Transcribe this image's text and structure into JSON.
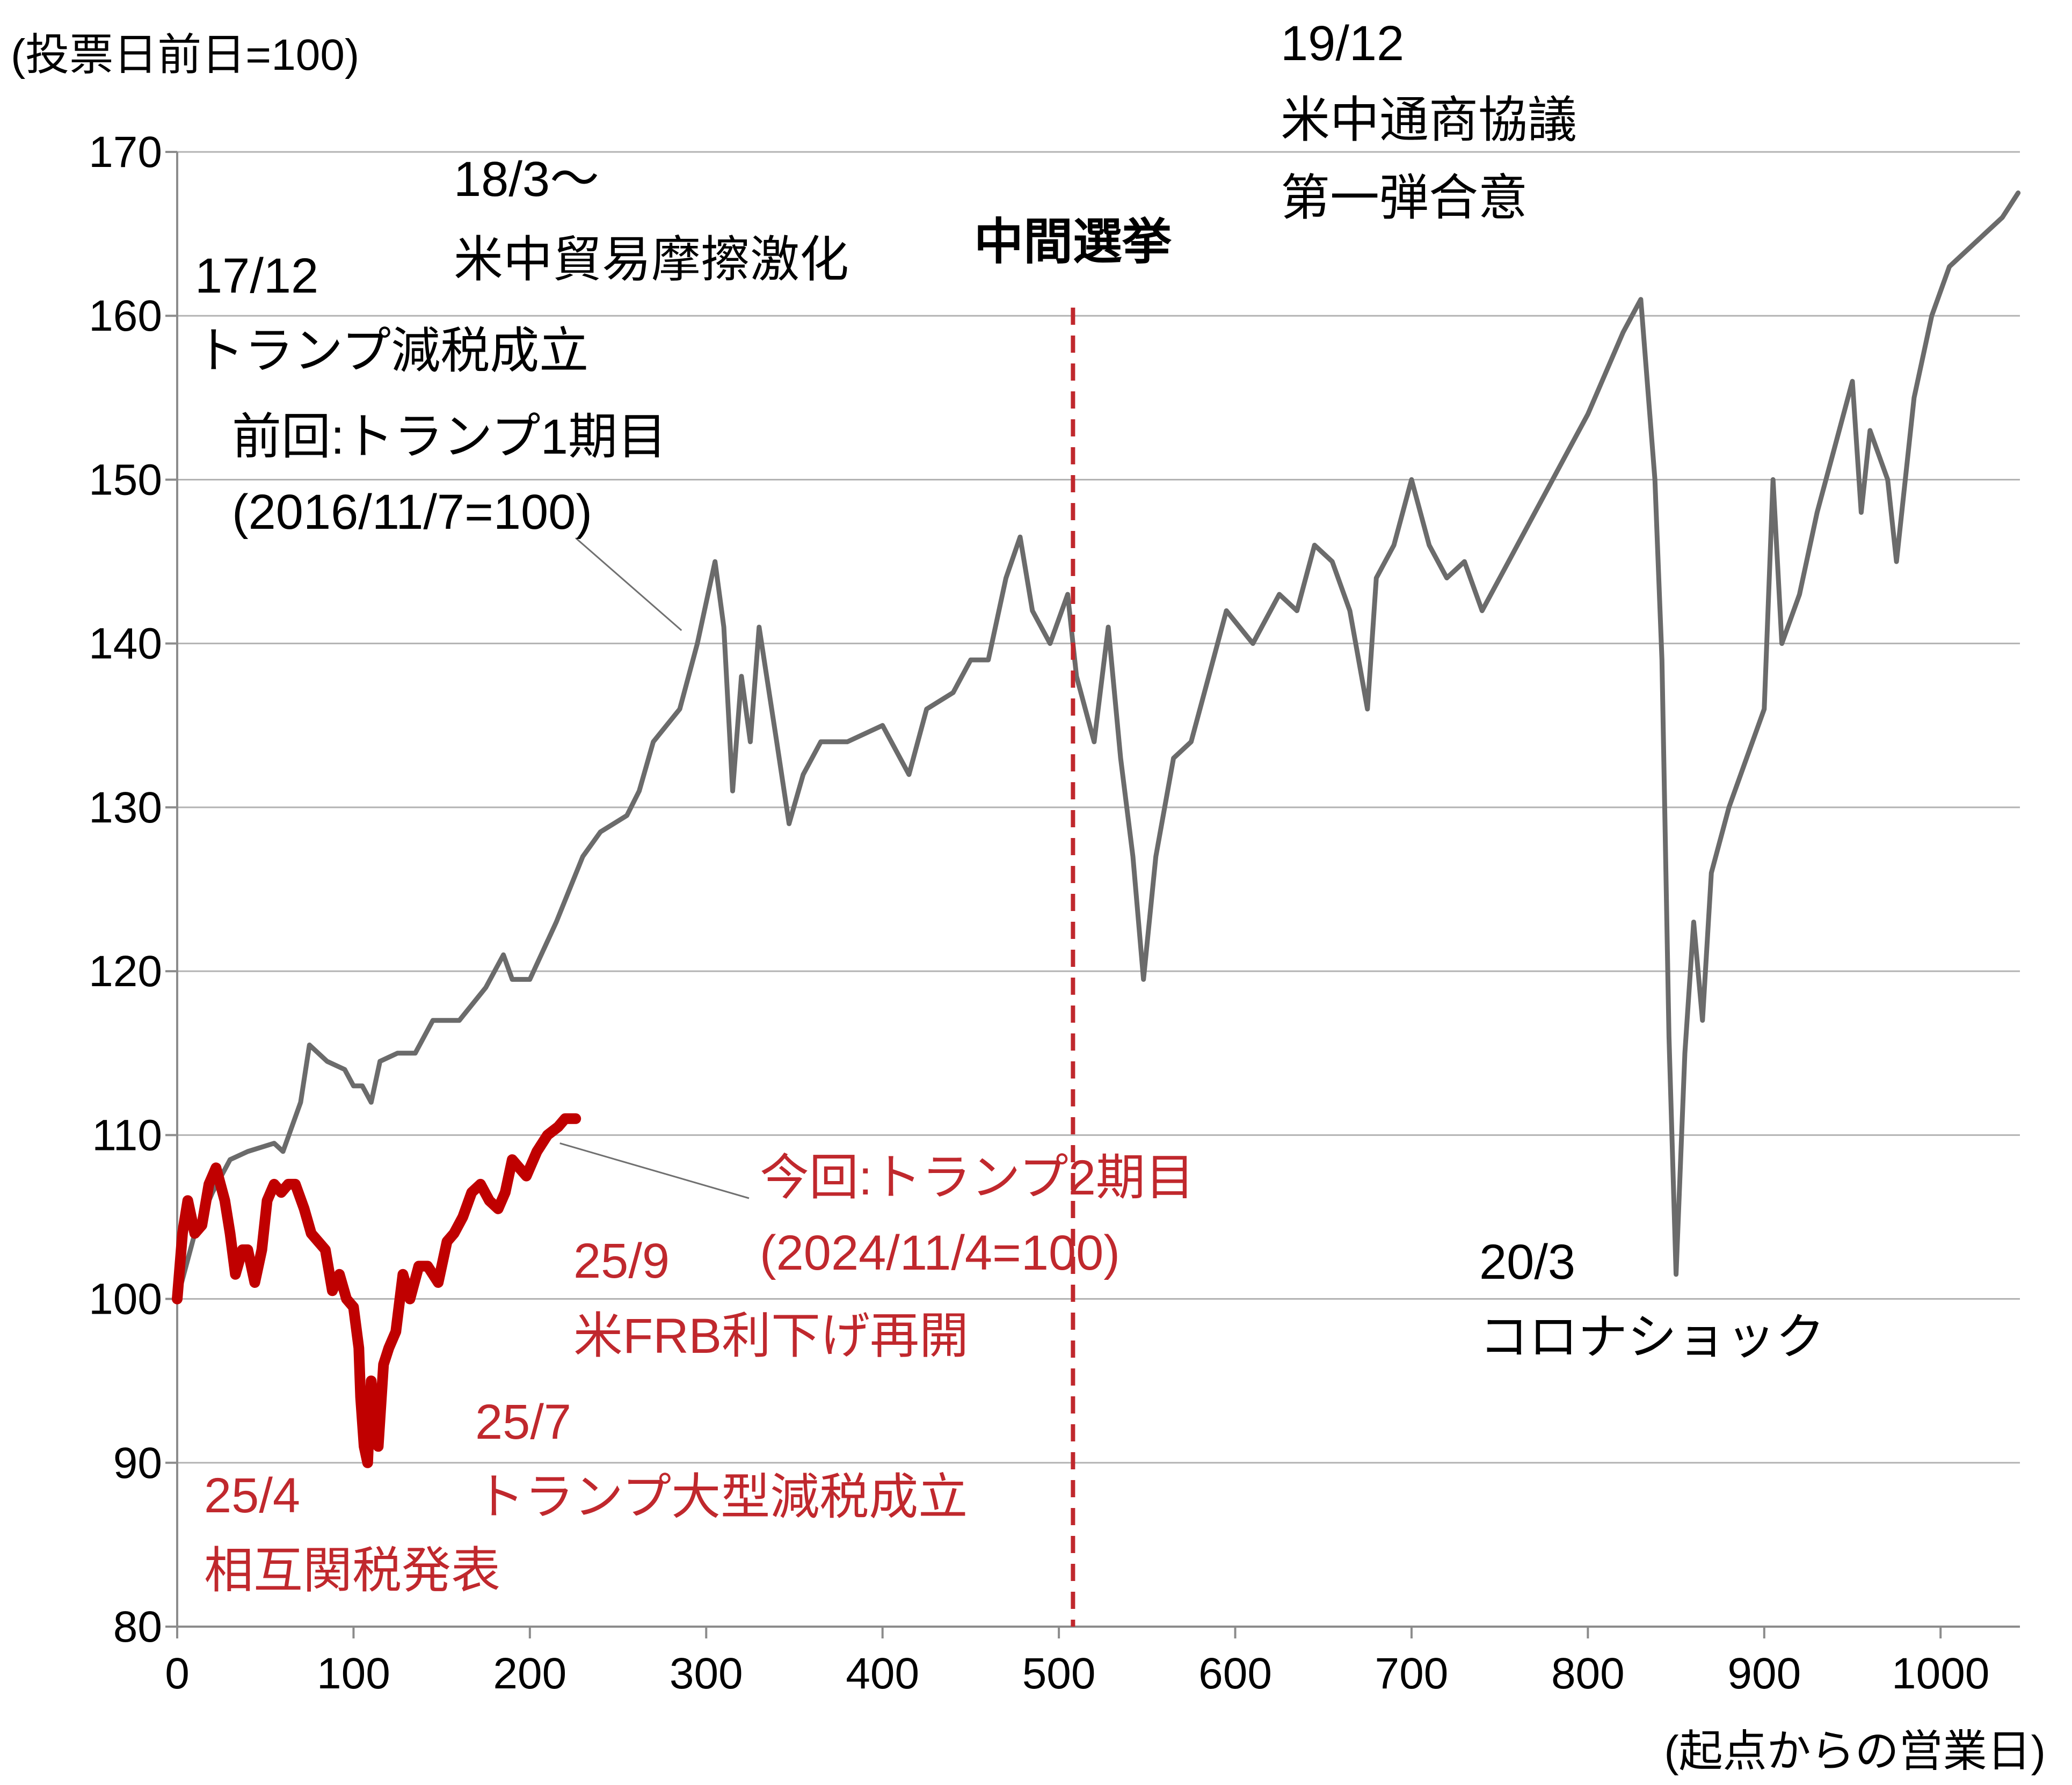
{
  "chart_data": {
    "type": "line",
    "ylabel": "(投票日前日=100)",
    "xlabel": "(起点からの営業日)",
    "xlim": [
      0,
      1045
    ],
    "ylim": [
      80,
      170
    ],
    "x_ticks": [
      "0",
      "100",
      "200",
      "300",
      "400",
      "500",
      "600",
      "700",
      "800",
      "900",
      "1000"
    ],
    "y_ticks": [
      "80",
      "90",
      "100",
      "110",
      "120",
      "130",
      "140",
      "150",
      "160",
      "170"
    ],
    "grid": "horizontal",
    "vline": {
      "x": 508,
      "label": "中間選挙",
      "color": "#c0282d"
    },
    "series": [
      {
        "key": "first",
        "color": "#6b6b6b",
        "points": [
          [
            0,
            100
          ],
          [
            10,
            104
          ],
          [
            20,
            106.5
          ],
          [
            30,
            108.5
          ],
          [
            40,
            109
          ],
          [
            55,
            109.5
          ],
          [
            60,
            109
          ],
          [
            70,
            112
          ],
          [
            75,
            115.5
          ],
          [
            85,
            114.5
          ],
          [
            95,
            114
          ],
          [
            100,
            113
          ],
          [
            105,
            113
          ],
          [
            110,
            112
          ],
          [
            115,
            114.5
          ],
          [
            125,
            115
          ],
          [
            135,
            115
          ],
          [
            145,
            117
          ],
          [
            160,
            117
          ],
          [
            175,
            119
          ],
          [
            185,
            121
          ],
          [
            190,
            119.5
          ],
          [
            200,
            119.5
          ],
          [
            215,
            123
          ],
          [
            230,
            127
          ],
          [
            240,
            128.5
          ],
          [
            255,
            129.5
          ],
          [
            262,
            131
          ],
          [
            270,
            134
          ],
          [
            285,
            136
          ],
          [
            295,
            140
          ],
          [
            305,
            145
          ],
          [
            310,
            141
          ],
          [
            315,
            131
          ],
          [
            320,
            138
          ],
          [
            325,
            134
          ],
          [
            330,
            141
          ],
          [
            340,
            134
          ],
          [
            347,
            129
          ],
          [
            355,
            132
          ],
          [
            365,
            134
          ],
          [
            380,
            134
          ],
          [
            400,
            135
          ],
          [
            415,
            132
          ],
          [
            425,
            136
          ],
          [
            440,
            137
          ],
          [
            450,
            139
          ],
          [
            460,
            139
          ],
          [
            470,
            144
          ],
          [
            478,
            146.5
          ],
          [
            485,
            142
          ],
          [
            495,
            140
          ],
          [
            505,
            143
          ],
          [
            510,
            138
          ],
          [
            520,
            134
          ],
          [
            528,
            141
          ],
          [
            535,
            133
          ],
          [
            542,
            127
          ],
          [
            548,
            119.5
          ],
          [
            555,
            127
          ],
          [
            565,
            133
          ],
          [
            575,
            134
          ],
          [
            585,
            138
          ],
          [
            595,
            142
          ],
          [
            610,
            140
          ],
          [
            625,
            143
          ],
          [
            635,
            142
          ],
          [
            645,
            146
          ],
          [
            655,
            145
          ],
          [
            665,
            142
          ],
          [
            675,
            136
          ],
          [
            680,
            144
          ],
          [
            690,
            146
          ],
          [
            700,
            150
          ],
          [
            710,
            146
          ],
          [
            720,
            144
          ],
          [
            730,
            145
          ],
          [
            740,
            142
          ],
          [
            755,
            145
          ],
          [
            770,
            148
          ],
          [
            780,
            150
          ],
          [
            790,
            152
          ],
          [
            800,
            154
          ],
          [
            810,
            156.5
          ],
          [
            820,
            159
          ],
          [
            830,
            161
          ],
          [
            838,
            150
          ],
          [
            842,
            139
          ],
          [
            846,
            116
          ],
          [
            850,
            101.5
          ],
          [
            855,
            115
          ],
          [
            860,
            123
          ],
          [
            865,
            117
          ],
          [
            870,
            126
          ],
          [
            880,
            130
          ],
          [
            890,
            133
          ],
          [
            900,
            136
          ],
          [
            905,
            150
          ],
          [
            910,
            140
          ],
          [
            920,
            143
          ],
          [
            930,
            148
          ],
          [
            940,
            152
          ],
          [
            950,
            156
          ],
          [
            955,
            148
          ],
          [
            960,
            153
          ],
          [
            970,
            150
          ],
          [
            975,
            145
          ],
          [
            985,
            155
          ],
          [
            995,
            160
          ],
          [
            1005,
            163
          ],
          [
            1015,
            164
          ],
          [
            1025,
            165
          ],
          [
            1035,
            166
          ],
          [
            1044,
            167.5
          ]
        ]
      },
      {
        "key": "second",
        "color": "#c00000",
        "points": [
          [
            0,
            100
          ],
          [
            3,
            104
          ],
          [
            6,
            106
          ],
          [
            10,
            104
          ],
          [
            14,
            104.5
          ],
          [
            18,
            107
          ],
          [
            22,
            108
          ],
          [
            27,
            106
          ],
          [
            30,
            104
          ],
          [
            33,
            101.5
          ],
          [
            37,
            103
          ],
          [
            40,
            103
          ],
          [
            44,
            101
          ],
          [
            48,
            103
          ],
          [
            51,
            106
          ],
          [
            55,
            107
          ],
          [
            59,
            106.5
          ],
          [
            63,
            107
          ],
          [
            67,
            107
          ],
          [
            72,
            105.5
          ],
          [
            76,
            104
          ],
          [
            80,
            103.5
          ],
          [
            84,
            103
          ],
          [
            88,
            100.5
          ],
          [
            92,
            101.5
          ],
          [
            96,
            100
          ],
          [
            100,
            99.5
          ],
          [
            103,
            97
          ],
          [
            104,
            94
          ],
          [
            106,
            91
          ],
          [
            108,
            90
          ],
          [
            110,
            95
          ],
          [
            112,
            93
          ],
          [
            114,
            91
          ],
          [
            117,
            96
          ],
          [
            120,
            97
          ],
          [
            124,
            98
          ],
          [
            128,
            101.5
          ],
          [
            132,
            100
          ],
          [
            137,
            102
          ],
          [
            142,
            102
          ],
          [
            148,
            101
          ],
          [
            153,
            103.5
          ],
          [
            157,
            104
          ],
          [
            162,
            105
          ],
          [
            167,
            106.5
          ],
          [
            172,
            107
          ],
          [
            177,
            106
          ],
          [
            182,
            105.5
          ],
          [
            186,
            106.5
          ],
          [
            190,
            108.5
          ],
          [
            194,
            108
          ],
          [
            198,
            107.5
          ],
          [
            204,
            109
          ],
          [
            210,
            110
          ],
          [
            216,
            110.5
          ],
          [
            220,
            111
          ],
          [
            226,
            111
          ]
        ]
      }
    ],
    "annotations": {
      "a1_line1": "17/12",
      "a1_line2": "トランプ減税成立",
      "a2_line1": "18/3～",
      "a2_line2": "米中貿易摩擦激化",
      "a3_line1": "19/12",
      "a3_line2": "米中通商協議",
      "a3_line3": "第一弾合意",
      "a4_line1": "20/3",
      "a4_line2": "コロナショック",
      "first_label_line1": "前回:トランプ1期目",
      "first_label_line2": "(2016/11/7=100)",
      "second_label_line1": "今回:トランプ2期目",
      "second_label_line2": "(2024/11/4=100)",
      "r1_line1": "25/4",
      "r1_line2": "相互関税発表",
      "r2_line1": "25/7",
      "r2_line2": "トランプ大型減税成立",
      "r3_line1": "25/9",
      "r3_line2": "米FRB利下げ再開"
    }
  }
}
